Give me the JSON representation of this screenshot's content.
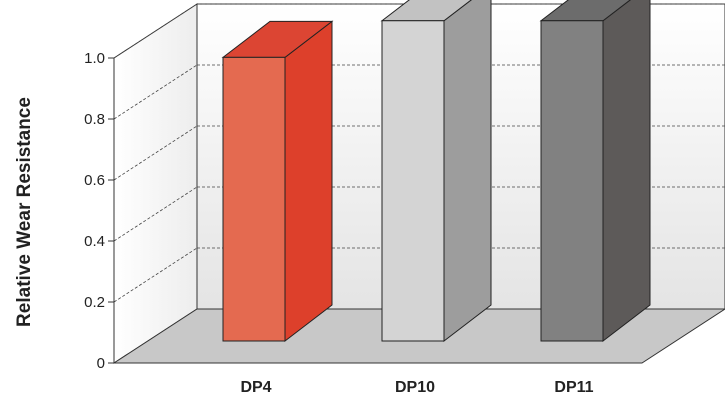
{
  "chart_data": {
    "type": "bar",
    "style": "3d",
    "categories": [
      "DP4",
      "DP10",
      "DP11"
    ],
    "values": [
      0.93,
      1.05,
      1.05
    ],
    "xlabel": "",
    "ylabel": "Relative Wear Resistance",
    "ylim": [
      0,
      1.0
    ],
    "yticks": [
      "0",
      "0.2",
      "0.4",
      "0.6",
      "0.8",
      "1.0"
    ],
    "grid": true,
    "legend": "none",
    "colors": {
      "DP4": {
        "front": "#e46a50",
        "side": "#dd402b",
        "top": "#dc4533"
      },
      "DP10": {
        "front": "#d4d4d4",
        "side": "#9d9d9d",
        "top": "#c2c2c2"
      },
      "DP11": {
        "front": "#818181",
        "side": "#5d5a59",
        "top": "#6c6c6c"
      },
      "back_wall": "#ebebeb",
      "left_wall": "#f2f2f2",
      "floor": "#c8c8c8"
    }
  }
}
